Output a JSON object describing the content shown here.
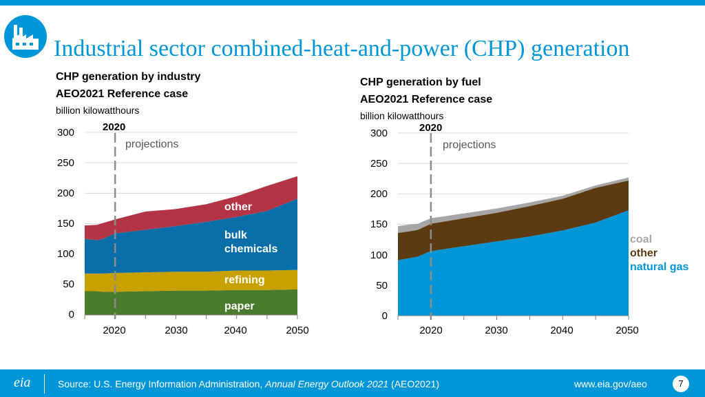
{
  "header": {
    "title": "Industrial sector combined-heat-and-power (CHP) generation",
    "logo_icon": "factory-icon"
  },
  "colors": {
    "accent": "#0096d7",
    "paper": "#4a7a2c",
    "refining": "#c8a000",
    "bulk_chemicals": "#0a6ea8",
    "other_industry": "#b33545",
    "natural_gas": "#0096d7",
    "other_fuel": "#5c3a12",
    "coal": "#a6a6a6"
  },
  "left": {
    "title": "CHP generation by industry",
    "case": "AEO2021 Reference case",
    "units": "billion kilowatthours",
    "marker_label": "2020",
    "projections_label": "projections",
    "y_ticks": [
      "0",
      "50",
      "100",
      "150",
      "200",
      "250",
      "300"
    ],
    "x_ticks": [
      "2020",
      "2030",
      "2040",
      "2050"
    ],
    "labels": {
      "other": "other",
      "bulk": "bulk chemicals",
      "refining": "refining",
      "paper": "paper"
    }
  },
  "right": {
    "title": "CHP generation by fuel",
    "case": "AEO2021 Reference case",
    "units": "billion kilowatthours",
    "marker_label": "2020",
    "projections_label": "projections",
    "y_ticks": [
      "0",
      "50",
      "100",
      "150",
      "200",
      "250",
      "300"
    ],
    "x_ticks": [
      "2020",
      "2030",
      "2040",
      "2050"
    ],
    "legend": {
      "coal": "coal",
      "other": "other",
      "natural_gas": "natural gas"
    }
  },
  "chart_data": [
    {
      "type": "area",
      "title": "CHP generation by industry",
      "ylabel": "billion kilowatthours",
      "x": [
        2015,
        2017,
        2018,
        2020,
        2025,
        2030,
        2035,
        2040,
        2045,
        2050
      ],
      "xlim": [
        2015,
        2050
      ],
      "ylim": [
        0,
        300
      ],
      "marker_year": 2020,
      "series": [
        {
          "name": "paper",
          "values": [
            39,
            39,
            38,
            38,
            39,
            40,
            40,
            41,
            41,
            42
          ]
        },
        {
          "name": "refining",
          "values": [
            29,
            29,
            30,
            31,
            31,
            31,
            31,
            32,
            32,
            32
          ]
        },
        {
          "name": "bulk chemicals",
          "values": [
            57,
            55,
            57,
            65,
            70,
            75,
            82,
            88,
            98,
            117
          ]
        },
        {
          "name": "other",
          "values": [
            22,
            25,
            26,
            23,
            30,
            28,
            29,
            34,
            41,
            37
          ]
        }
      ]
    },
    {
      "type": "area",
      "title": "CHP generation by fuel",
      "ylabel": "billion kilowatthours",
      "x": [
        2015,
        2017,
        2018,
        2020,
        2025,
        2030,
        2035,
        2040,
        2045,
        2050
      ],
      "xlim": [
        2015,
        2050
      ],
      "ylim": [
        0,
        300
      ],
      "marker_year": 2020,
      "series": [
        {
          "name": "natural gas",
          "values": [
            91,
            95,
            97,
            106,
            114,
            122,
            130,
            140,
            153,
            173
          ]
        },
        {
          "name": "other",
          "values": [
            45,
            44,
            44,
            45,
            46,
            47,
            50,
            52,
            57,
            49
          ]
        },
        {
          "name": "coal",
          "values": [
            11,
            11,
            10,
            9,
            8,
            7,
            6,
            5,
            4,
            5
          ]
        }
      ]
    }
  ],
  "footer": {
    "logo": "eia",
    "source_prefix": "Source: U.S. Energy Information Administration, ",
    "source_pub": "Annual Energy Outlook 2021",
    "source_suffix": " (AEO2021)",
    "url": "www.eia.gov/aeo",
    "page": "7"
  }
}
